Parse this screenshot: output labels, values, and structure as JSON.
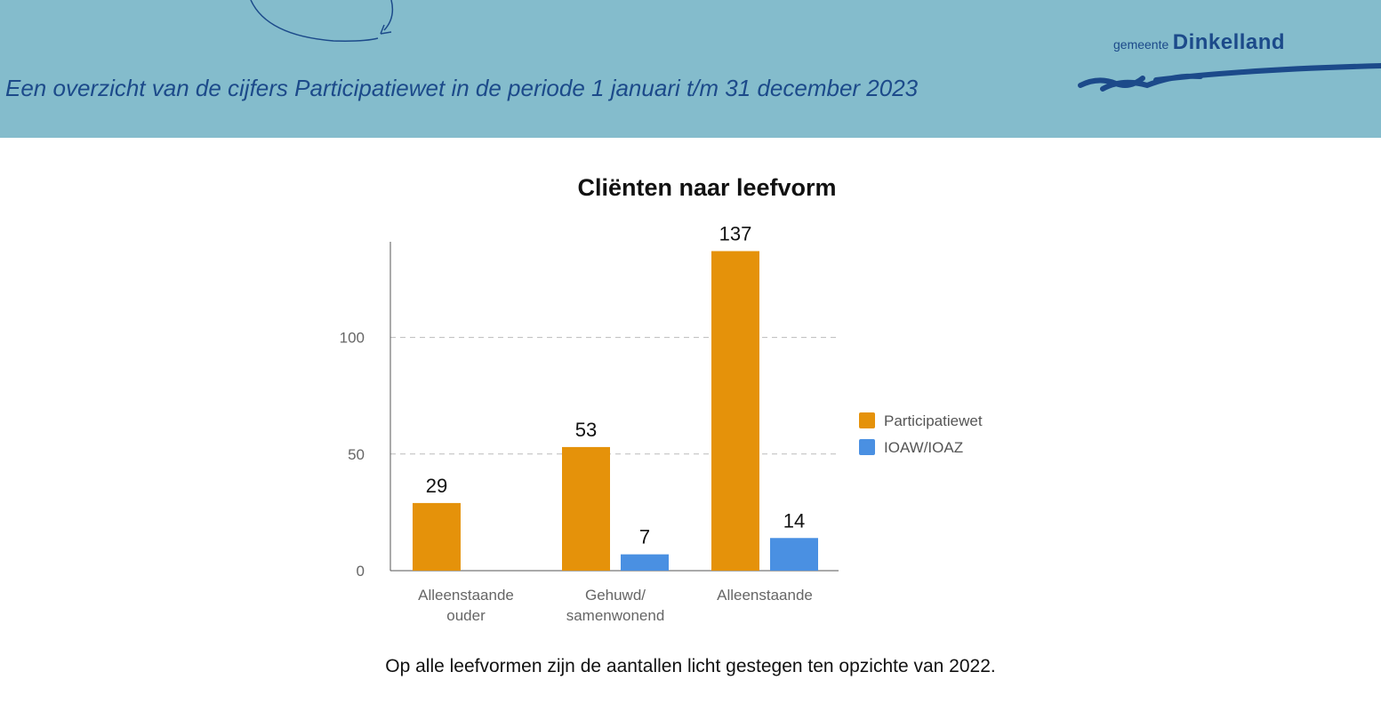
{
  "header": {
    "title": "Een overzicht van de cijfers Participatiewet in de periode 1 januari t/m 31 december 2023",
    "logo_prefix": "gemeente",
    "logo_name": "Dinkelland"
  },
  "chart_data": {
    "type": "bar",
    "title": "Cliënten naar leefvorm",
    "categories": [
      "Alleenstaande ouder",
      "Gehuwd/ samenwonend",
      "Alleenstaande"
    ],
    "series": [
      {
        "name": "Participatiewet",
        "color": "#e5920a",
        "values": [
          29,
          53,
          137
        ]
      },
      {
        "name": "IOAW/IOAZ",
        "color": "#4a90e2",
        "values": [
          null,
          7,
          14
        ]
      }
    ],
    "ylim": [
      0,
      141
    ],
    "yticks": [
      0,
      50,
      100
    ],
    "grid": true,
    "legend": "right"
  },
  "footer": {
    "text": "Op alle leefvormen zijn de aantallen licht gestegen ten opzichte van 2022."
  }
}
